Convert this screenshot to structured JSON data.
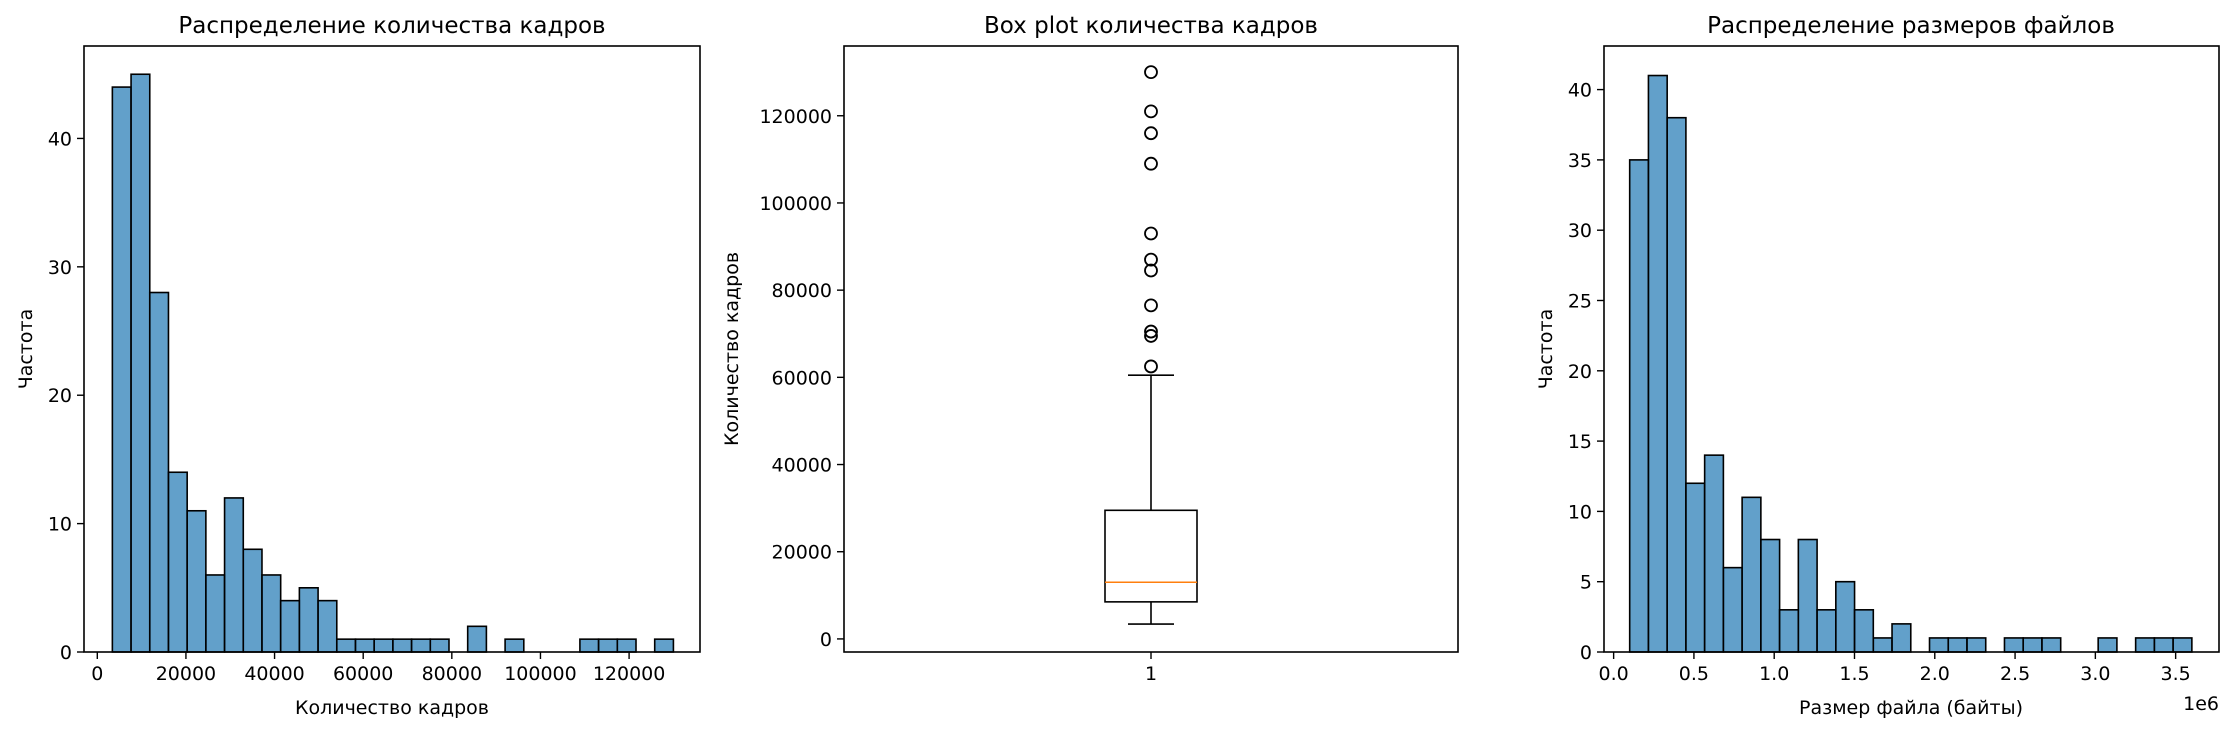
{
  "chart_data": [
    {
      "type": "bar",
      "subtype": "histogram",
      "title": "Распределение количества кадров",
      "xlabel": "Количество кадров",
      "ylabel": "Частота",
      "xlim": [
        -3000,
        136000
      ],
      "ylim": [
        0,
        47.2
      ],
      "xticks": [
        0,
        20000,
        40000,
        60000,
        80000,
        100000,
        120000
      ],
      "xticklabels": [
        "0",
        "20000",
        "40000",
        "60000",
        "80000",
        "100000",
        "120000"
      ],
      "yticks": [
        0,
        10,
        20,
        30,
        40
      ],
      "yticklabels": [
        "0",
        "10",
        "20",
        "30",
        "40"
      ],
      "bin_start": 3400,
      "bin_width": 4220,
      "values": [
        44,
        45,
        28,
        14,
        11,
        6,
        12,
        8,
        6,
        4,
        5,
        4,
        1,
        1,
        1,
        1,
        1,
        1,
        0,
        2,
        0,
        1,
        0,
        0,
        0,
        1,
        1,
        1,
        0,
        1
      ],
      "color": "#1f77b4"
    },
    {
      "type": "box",
      "title": "Box plot количества кадров",
      "xlabel": "",
      "ylabel": "Количество кадров",
      "ylim": [
        -3000,
        136000
      ],
      "yticks": [
        0,
        20000,
        40000,
        60000,
        80000,
        100000,
        120000
      ],
      "yticklabels": [
        "0",
        "20000",
        "40000",
        "60000",
        "80000",
        "100000",
        "120000"
      ],
      "xticklabels": [
        "1"
      ],
      "whisker_low": 3400,
      "q1": 8500,
      "median": 13000,
      "q3": 29500,
      "whisker_high": 60500,
      "fliers": [
        62500,
        69500,
        70500,
        76500,
        84500,
        87000,
        93000,
        109000,
        116000,
        121000,
        130000
      ],
      "median_color": "#ff7f0e"
    },
    {
      "type": "bar",
      "subtype": "histogram",
      "title": "Распределение размеров файлов",
      "xlabel": "Размер файла (байты)",
      "ylabel": "Частота",
      "offset_label": "1e6",
      "xlim": [
        -0.06,
        3.77
      ],
      "ylim": [
        0,
        43.1
      ],
      "xticks": [
        0.0,
        0.5,
        1.0,
        1.5,
        2.0,
        2.5,
        3.0,
        3.5
      ],
      "xticklabels": [
        "0.0",
        "0.5",
        "1.0",
        "1.5",
        "2.0",
        "2.5",
        "3.0",
        "3.5"
      ],
      "yticks": [
        0,
        5,
        10,
        15,
        20,
        25,
        30,
        35,
        40
      ],
      "yticklabels": [
        "0",
        "5",
        "10",
        "15",
        "20",
        "25",
        "30",
        "35",
        "40"
      ],
      "bin_start": 0.1,
      "bin_width": 0.1167,
      "values": [
        35,
        41,
        38,
        12,
        14,
        6,
        11,
        8,
        3,
        8,
        3,
        5,
        3,
        1,
        2,
        0,
        1,
        1,
        1,
        0,
        1,
        1,
        1,
        0,
        0,
        1,
        0,
        1,
        1,
        1
      ],
      "color": "#1f77b4"
    }
  ]
}
